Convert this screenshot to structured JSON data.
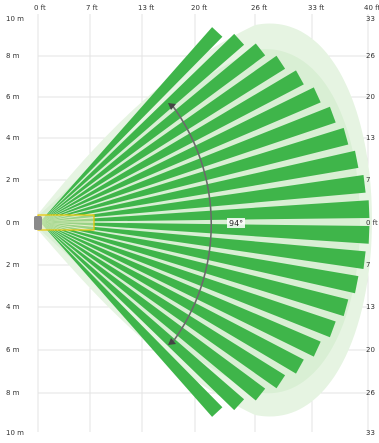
{
  "diagram": {
    "top_ft_labels": [
      "0 ft",
      "7 ft",
      "13 ft",
      "20 ft",
      "26 ft",
      "33 ft",
      "40 ft"
    ],
    "left_m_labels": [
      "10 m",
      "8 m",
      "6 m",
      "4 m",
      "2 m",
      "0 m",
      "2 m",
      "4 m",
      "6 m",
      "8 m",
      "10 m"
    ],
    "right_ft_labels": [
      "33",
      "26",
      "20",
      "13",
      "7",
      "0 ft",
      "7",
      "13",
      "20",
      "26",
      "33"
    ],
    "angle_label": "94°",
    "colors": {
      "beam": "#3fb54a",
      "coverage": "#e4f3e0",
      "coverage_inner": "#d6eed1",
      "arc": "#6a6a6a",
      "sensor_box": "#e8c400",
      "grid": "#e3e3e3"
    },
    "beam_count": 22
  }
}
